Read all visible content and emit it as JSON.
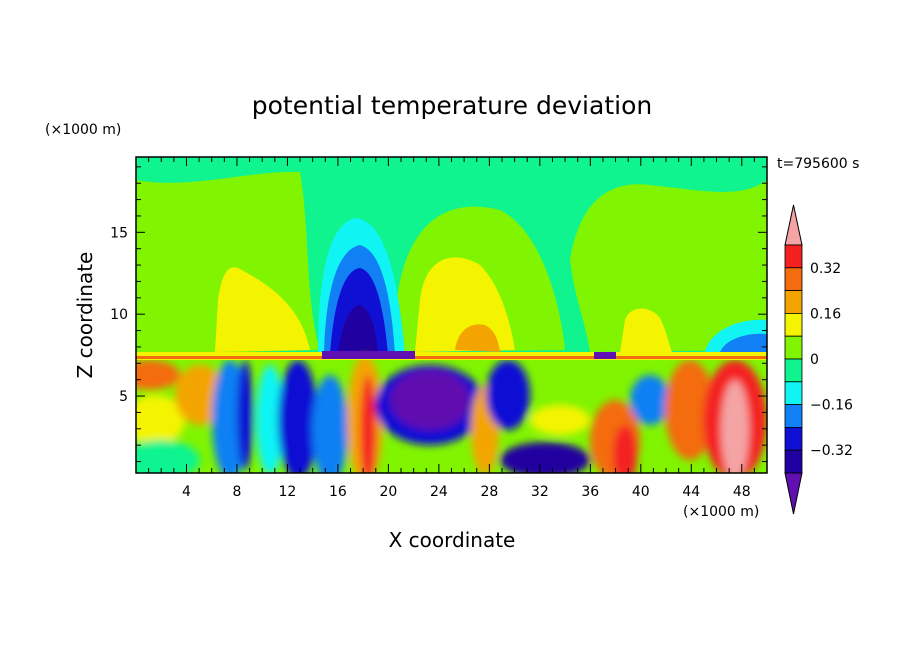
{
  "chart_data": {
    "type": "heatmap",
    "title": "potential temperature deviation",
    "time_label": "t=795600 s",
    "xlabel": "X coordinate",
    "ylabel": "Z coordinate",
    "x_unit": "(×1000 m)",
    "y_unit": "(×1000 m)",
    "xlim": [
      0,
      50
    ],
    "ylim": [
      0.3,
      19.6
    ],
    "x_ticks": [
      "4",
      "8",
      "12",
      "16",
      "20",
      "24",
      "28",
      "32",
      "36",
      "40",
      "44",
      "48"
    ],
    "y_ticks": [
      "5",
      "10",
      "15"
    ],
    "colorbar": {
      "labels": [
        "0.32",
        "0.16",
        "0",
        "−0.16",
        "−0.32"
      ],
      "levels": [
        0.4,
        0.32,
        0.24,
        0.16,
        0.08,
        0,
        -0.08,
        -0.16,
        -0.24,
        -0.32,
        -0.4
      ],
      "colors": [
        "#f4a4a4",
        "#f42020",
        "#f46c10",
        "#f4a400",
        "#f4f400",
        "#80f400",
        "#10f490",
        "#10f4f4",
        "#1080f4",
        "#1010d4",
        "#2000a0",
        "#6010b0"
      ],
      "extend": "both"
    },
    "features": [
      {
        "x": 3,
        "z": 7.0,
        "value": 0.2
      },
      {
        "x": 2,
        "z": 5.0,
        "value": 0.2
      },
      {
        "x": 4,
        "z": 3.0,
        "value": 0.1
      },
      {
        "x": 9,
        "z": 10.5,
        "value": 0.12
      },
      {
        "x": 10,
        "z": 4.0,
        "value": -0.3
      },
      {
        "x": 18,
        "z": 10.5,
        "value": -0.33
      },
      {
        "x": 18,
        "z": 3.5,
        "value": 0.3
      },
      {
        "x": 26,
        "z": 11.0,
        "value": 0.15
      },
      {
        "x": 25,
        "z": 4.5,
        "value": -0.35
      },
      {
        "x": 31,
        "z": 6.5,
        "value": -0.3
      },
      {
        "x": 32,
        "z": 2.0,
        "value": -0.3
      },
      {
        "x": 38,
        "z": 2.5,
        "value": 0.25
      },
      {
        "x": 39,
        "z": 4.0,
        "value": 0.08
      },
      {
        "x": 42,
        "z": 5.0,
        "value": 0.24
      },
      {
        "x": 44.5,
        "z": 9.0,
        "value": -0.12
      },
      {
        "x": 47,
        "z": 3.5,
        "value": 0.4
      }
    ]
  }
}
